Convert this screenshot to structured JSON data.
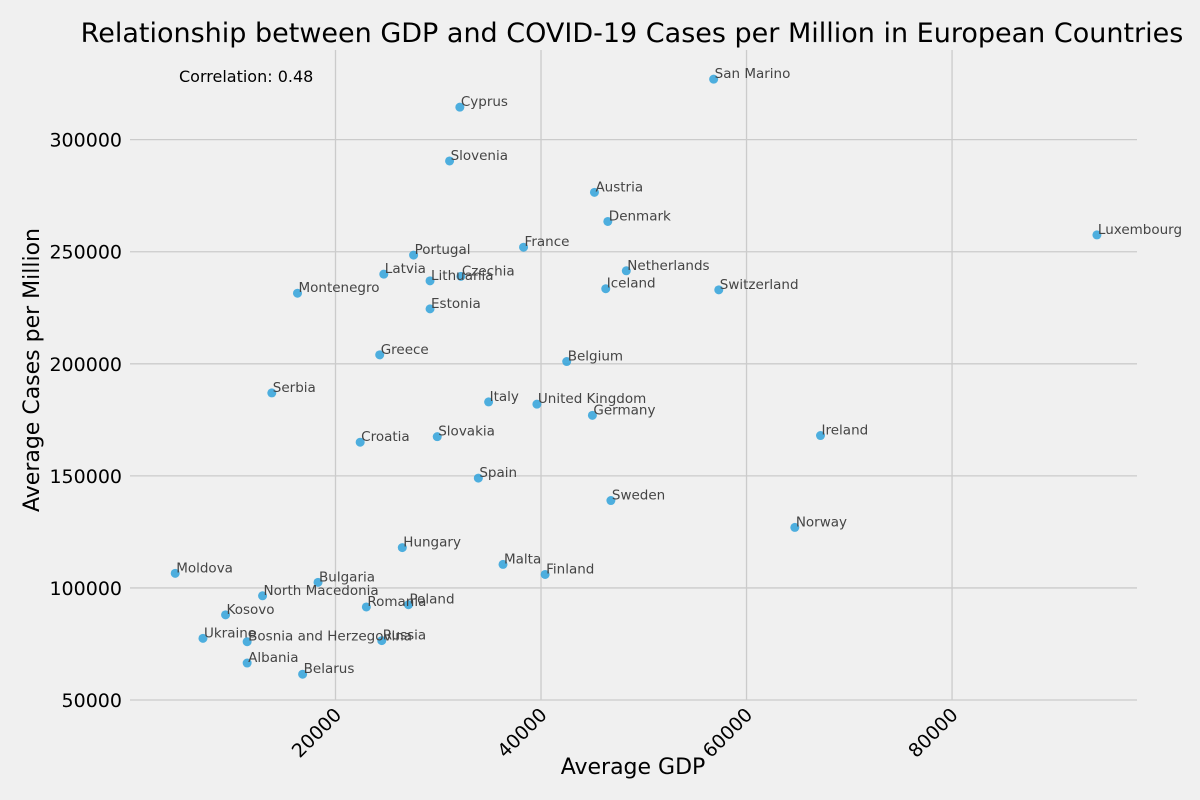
{
  "chart_data": {
    "type": "scatter",
    "title": "Relationship between GDP and COVID-19 Cases per Million in European Countries",
    "xlabel": "Average GDP",
    "ylabel": "Average Cases per Million",
    "annotation": "Correlation: 0.48",
    "xlim": [
      0,
      98000
    ],
    "ylim": [
      50000,
      340000
    ],
    "xticks": [
      20000,
      40000,
      60000,
      80000
    ],
    "yticks": [
      50000,
      100000,
      150000,
      200000,
      250000,
      300000
    ],
    "grid": true,
    "point_color": "#30a2da",
    "points": [
      {
        "label": "San Marino",
        "x": 56800,
        "y": 327000
      },
      {
        "label": "Cyprus",
        "x": 32100,
        "y": 314500
      },
      {
        "label": "Slovenia",
        "x": 31100,
        "y": 290500
      },
      {
        "label": "Austria",
        "x": 45200,
        "y": 276500
      },
      {
        "label": "Denmark",
        "x": 46500,
        "y": 263500
      },
      {
        "label": "Luxembourg",
        "x": 94100,
        "y": 257500
      },
      {
        "label": "France",
        "x": 38300,
        "y": 252000
      },
      {
        "label": "Portugal",
        "x": 27600,
        "y": 248500
      },
      {
        "label": "Netherlands",
        "x": 48300,
        "y": 241500
      },
      {
        "label": "Latvia",
        "x": 24700,
        "y": 240000
      },
      {
        "label": "Czechia",
        "x": 32200,
        "y": 239000
      },
      {
        "label": "Lithuania",
        "x": 29200,
        "y": 237000
      },
      {
        "label": "Iceland",
        "x": 46300,
        "y": 233500
      },
      {
        "label": "Switzerland",
        "x": 57300,
        "y": 233000
      },
      {
        "label": "Montenegro",
        "x": 16300,
        "y": 231500
      },
      {
        "label": "Estonia",
        "x": 29200,
        "y": 224500
      },
      {
        "label": "Greece",
        "x": 24300,
        "y": 204000
      },
      {
        "label": "Belgium",
        "x": 42500,
        "y": 201000
      },
      {
        "label": "Serbia",
        "x": 13800,
        "y": 187000
      },
      {
        "label": "Italy",
        "x": 34900,
        "y": 183000
      },
      {
        "label": "United Kingdom",
        "x": 39600,
        "y": 182000
      },
      {
        "label": "Germany",
        "x": 45000,
        "y": 177000
      },
      {
        "label": "Ireland",
        "x": 67200,
        "y": 168000
      },
      {
        "label": "Slovakia",
        "x": 29900,
        "y": 167500
      },
      {
        "label": "Croatia",
        "x": 22400,
        "y": 165000
      },
      {
        "label": "Spain",
        "x": 33900,
        "y": 149000
      },
      {
        "label": "Sweden",
        "x": 46800,
        "y": 139000
      },
      {
        "label": "Norway",
        "x": 64700,
        "y": 127000
      },
      {
        "label": "Hungary",
        "x": 26500,
        "y": 118000
      },
      {
        "label": "Malta",
        "x": 36300,
        "y": 110500
      },
      {
        "label": "Moldova",
        "x": 4400,
        "y": 106500
      },
      {
        "label": "Finland",
        "x": 40400,
        "y": 106000
      },
      {
        "label": "Bulgaria",
        "x": 18300,
        "y": 102500
      },
      {
        "label": "North Macedonia",
        "x": 12900,
        "y": 96500
      },
      {
        "label": "Poland",
        "x": 27100,
        "y": 92500
      },
      {
        "label": "Romania",
        "x": 23000,
        "y": 91500
      },
      {
        "label": "Kosovo",
        "x": 9300,
        "y": 88000
      },
      {
        "label": "Ukraine",
        "x": 7100,
        "y": 77500
      },
      {
        "label": "Russia",
        "x": 24500,
        "y": 76500
      },
      {
        "label": "Bosnia and Herzegovina",
        "x": 11400,
        "y": 76000
      },
      {
        "label": "Albania",
        "x": 11400,
        "y": 66500
      },
      {
        "label": "Belarus",
        "x": 16800,
        "y": 61500
      }
    ]
  }
}
